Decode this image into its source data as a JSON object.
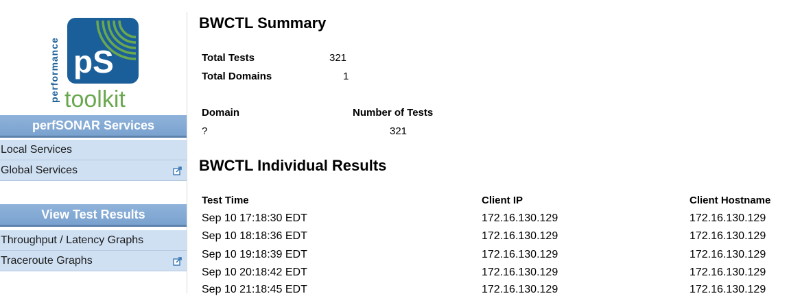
{
  "sidebar": {
    "logo": {
      "small_text": "performance",
      "initials": "pS",
      "word": "toolkit"
    },
    "services": {
      "header": "perfSONAR Services",
      "items": [
        {
          "label": "Local Services",
          "external": false
        },
        {
          "label": "Global Services",
          "external": true
        }
      ]
    },
    "results": {
      "header": "View Test Results",
      "items": [
        {
          "label": "Throughput / Latency Graphs",
          "external": false
        },
        {
          "label": "Traceroute Graphs",
          "external": true
        }
      ]
    }
  },
  "summary": {
    "title": "BWCTL Summary",
    "total_tests_label": "Total Tests",
    "total_tests_value": "321",
    "total_domains_label": "Total Domains",
    "total_domains_value": "1",
    "domain_table": {
      "headers": [
        "Domain",
        "Number of Tests"
      ],
      "rows": [
        [
          "?",
          "321"
        ]
      ]
    }
  },
  "results": {
    "title": "BWCTL Individual Results",
    "headers": [
      "Test Time",
      "Client IP",
      "Client Hostname"
    ],
    "rows": [
      [
        "Sep 10 17:18:30 EDT",
        "172.16.130.129",
        "172.16.130.129"
      ],
      [
        "Sep 10 18:18:36 EDT",
        "172.16.130.129",
        "172.16.130.129"
      ],
      [
        "Sep 10 19:18:39 EDT",
        "172.16.130.129",
        "172.16.130.129"
      ],
      [
        "Sep 10 20:18:42 EDT",
        "172.16.130.129",
        "172.16.130.129"
      ],
      [
        "Sep 10 21:18:45 EDT",
        "172.16.130.129",
        "172.16.130.129"
      ]
    ]
  },
  "colors": {
    "header_bg": "#7aa2cf",
    "menu_bg": "#cfe0f3",
    "logo_blue": "#1b5f9a",
    "logo_green": "#6aa84f"
  }
}
